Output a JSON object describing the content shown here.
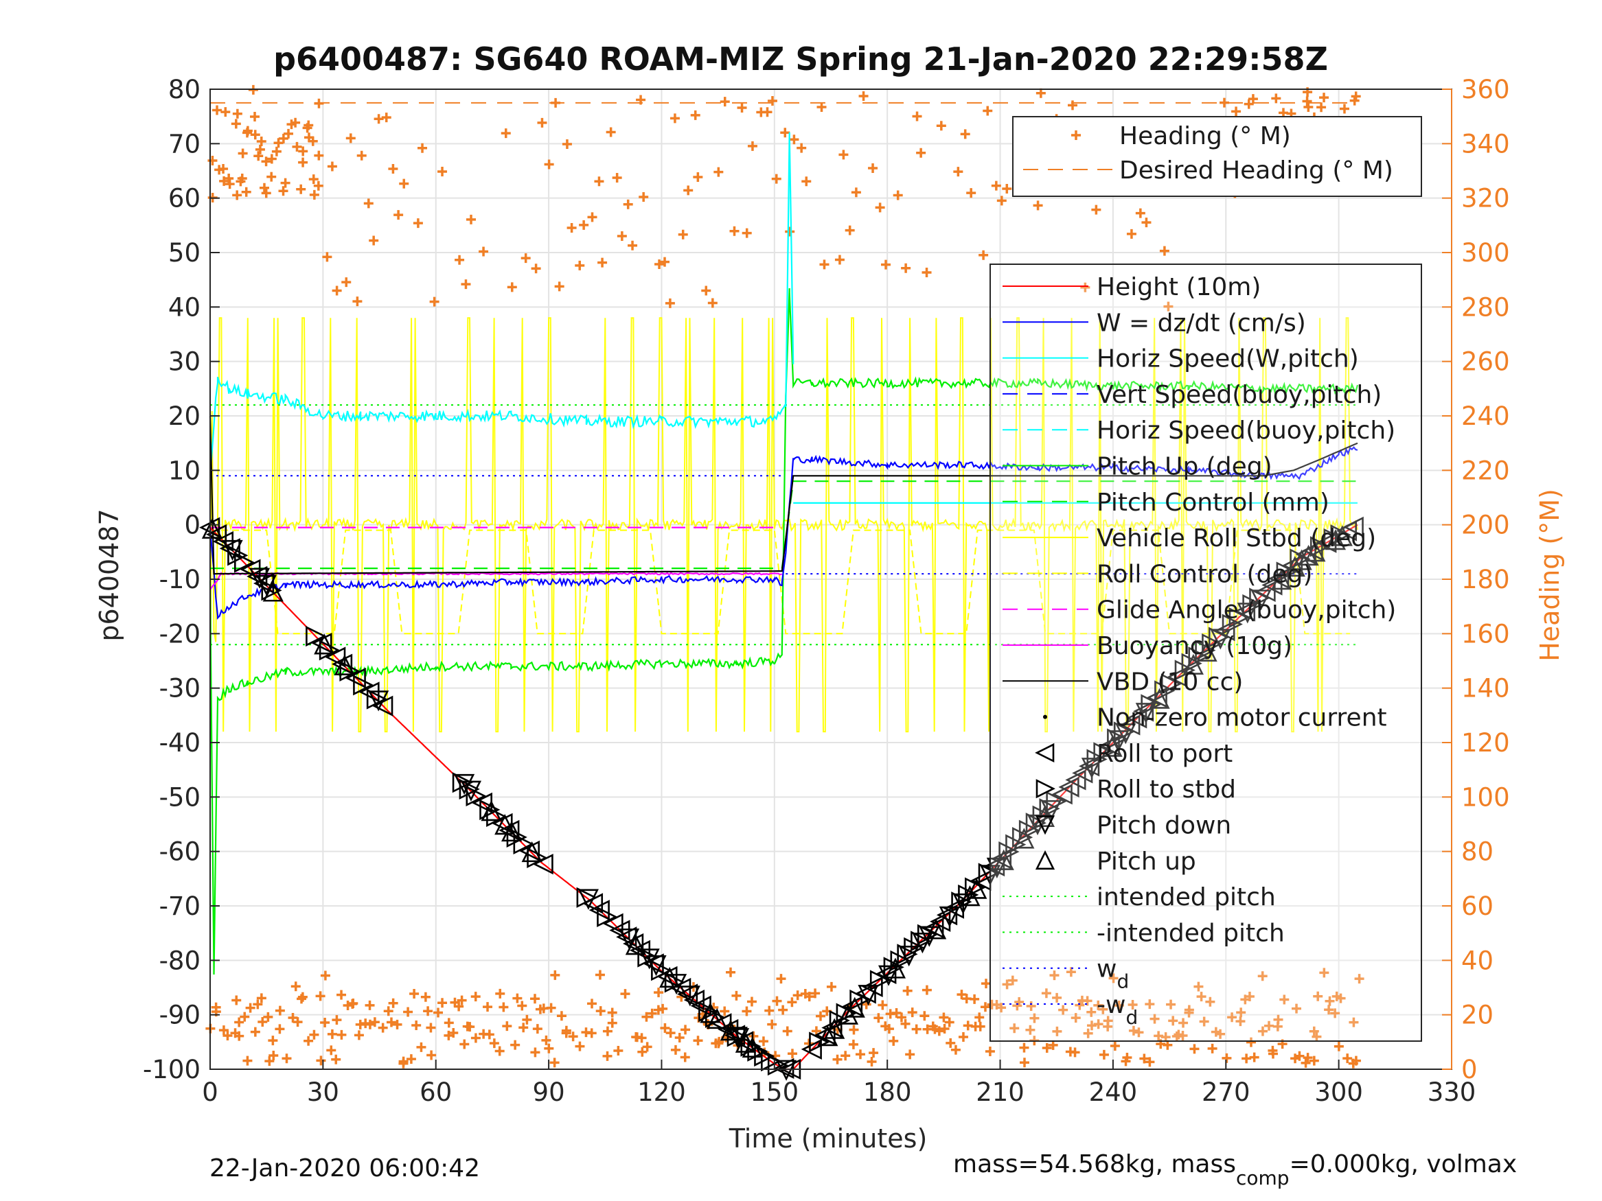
{
  "chart_data": {
    "type": "line",
    "title": "p6400487: SG640 ROAM-MIZ Spring 21-Jan-2020 22:29:58Z",
    "xlabel": "Time (minutes)",
    "ylabel": "p6400487",
    "ylabel_right": "Heading (°M)",
    "xlim": [
      0,
      330
    ],
    "ylim": [
      -100,
      80
    ],
    "ylim_right": [
      0,
      360
    ],
    "x_ticks": [
      "0",
      "30",
      "60",
      "90",
      "120",
      "150",
      "180",
      "210",
      "240",
      "270",
      "300",
      "330"
    ],
    "y_ticks": [
      "-100",
      "-90",
      "-80",
      "-70",
      "-60",
      "-50",
      "-40",
      "-30",
      "-20",
      "-10",
      "0",
      "10",
      "20",
      "30",
      "40",
      "50",
      "60",
      "70",
      "80"
    ],
    "y_right_ticks": [
      "0",
      "20",
      "40",
      "60",
      "80",
      "100",
      "120",
      "140",
      "160",
      "180",
      "200",
      "220",
      "240",
      "260",
      "280",
      "300",
      "320",
      "340",
      "360"
    ],
    "grid": true,
    "footer_left": "22-Jan-2020 06:00:42",
    "footer_right": "mass=54.568kg, mass",
    "footer_right_sub": "comp",
    "footer_right_tail": "=0.000kg, volmax",
    "colors": {
      "height": "#ff0000",
      "w": "#0000ff",
      "horiz_speed": "#00ffff",
      "pitch": "#00ee00",
      "roll": "#ffff00",
      "glide": "#ff00ff",
      "vbd": "#000000",
      "heading": "#f07f25"
    },
    "legend_heading": [
      {
        "label": "Heading (° M)",
        "style": "plus"
      },
      {
        "label": "Desired Heading (° M)",
        "style": "dash"
      }
    ],
    "legend_main": [
      {
        "label": "Height (10m)",
        "color": "#ff0000",
        "style": "solid"
      },
      {
        "label": "W = dz/dt (cm/s)",
        "color": "#0000ff",
        "style": "solid"
      },
      {
        "label": "Horiz Speed(W,pitch)",
        "color": "#00ffff",
        "style": "solid"
      },
      {
        "label": "Vert Speed(buoy,pitch)",
        "color": "#0000ff",
        "style": "dash"
      },
      {
        "label": "Horiz Speed(buoy,pitch)",
        "color": "#00ffff",
        "style": "dash"
      },
      {
        "label": "Pitch Up (deg)",
        "color": "#00ee00",
        "style": "solid"
      },
      {
        "label": "Pitch Control (mm)",
        "color": "#00ee00",
        "style": "dash"
      },
      {
        "label": "Vehicle Roll Stbd (deg)",
        "color": "#ffff00",
        "style": "solid"
      },
      {
        "label": "Roll Control (deg)",
        "color": "#ffff00",
        "style": "dash"
      },
      {
        "label": "Glide Angle (buoy,pitch)",
        "color": "#ff00ff",
        "style": "dash"
      },
      {
        "label": "Buoyancy (10g)",
        "color": "#ff00ff",
        "style": "solid"
      },
      {
        "label": "VBD (10 cc)",
        "color": "#000000",
        "style": "solid"
      },
      {
        "label": "Non-zero motor current",
        "color": "#000000",
        "style": "dot"
      },
      {
        "label": "Roll to port",
        "color": "#000000",
        "style": "tri-left"
      },
      {
        "label": "Roll to stbd",
        "color": "#000000",
        "style": "tri-right"
      },
      {
        "label": "Pitch down",
        "color": "#000000",
        "style": "tri-down"
      },
      {
        "label": "Pitch up",
        "color": "#000000",
        "style": "tri-up"
      },
      {
        "label": "intended pitch",
        "color": "#00ee00",
        "style": "dotted"
      },
      {
        "label": "-intended pitch",
        "color": "#00ee00",
        "style": "dotted"
      },
      {
        "label": "w",
        "sub": "d",
        "color": "#0000ff",
        "style": "dotted"
      },
      {
        "label": "-w",
        "sub": "d",
        "color": "#0000ff",
        "style": "dotted"
      }
    ],
    "reference_lines": {
      "intended_pitch": 22,
      "neg_intended_pitch": -22,
      "w_d": 9,
      "neg_w_d": -9,
      "desired_heading_deg": 355
    },
    "series": [
      {
        "key": "height",
        "x": [
          0,
          47,
          68,
          88,
          101,
          120,
          140,
          150,
          153,
          155,
          170,
          200,
          230,
          260,
          290,
          305
        ],
        "y": [
          -0.5,
          -34,
          -48,
          -62,
          -69,
          -82,
          -94,
          -99,
          -100,
          -100,
          -89,
          -69,
          -47,
          -26,
          -6,
          0
        ]
      },
      {
        "key": "w",
        "x": [
          0,
          2,
          5,
          10,
          20,
          40,
          60,
          80,
          100,
          120,
          140,
          150,
          152,
          153,
          155,
          160,
          180,
          200,
          220,
          240,
          260,
          280,
          290,
          300,
          305
        ],
        "y": [
          0,
          -17,
          -15,
          -13,
          -11,
          -11,
          -11,
          -10.5,
          -10.5,
          -10,
          -10,
          -10,
          -11,
          -5,
          12,
          12,
          11,
          11,
          10.5,
          10.5,
          10,
          9,
          9,
          13,
          14
        ]
      },
      {
        "key": "horiz_speed",
        "x": [
          0,
          2,
          5,
          10,
          20,
          30,
          40,
          60,
          80,
          100,
          120,
          140,
          150,
          153,
          154,
          155
        ],
        "y": [
          10,
          27,
          25,
          24,
          23,
          20,
          20,
          20,
          20,
          19,
          19,
          19,
          19,
          22,
          72,
          30
        ]
      },
      {
        "key": "pitch",
        "x": [
          0,
          1,
          2,
          5,
          10,
          20,
          40,
          60,
          80,
          100,
          120,
          140,
          150,
          152,
          153,
          154,
          155,
          160,
          180,
          200,
          220,
          240,
          260,
          280,
          300,
          305
        ],
        "y": [
          -10,
          -82,
          -32,
          -30,
          -29,
          -27,
          -27,
          -26,
          -26,
          -26,
          -25.5,
          -25.5,
          -25,
          -24,
          24,
          43,
          26,
          26,
          26,
          26,
          26,
          25.5,
          25.5,
          25,
          25,
          25
        ]
      },
      {
        "key": "vbd",
        "x": [
          0,
          1,
          152,
          155,
          156,
          280,
          288,
          295,
          305
        ],
        "y": [
          20,
          -9,
          -8.5,
          9,
          9,
          9,
          10,
          12,
          15
        ]
      },
      {
        "key": "glide",
        "x": [
          0,
          152
        ],
        "y": [
          -0.5,
          -0.5
        ]
      },
      {
        "key": "buoyancy",
        "x": [
          0,
          3,
          152
        ],
        "y": [
          -12,
          -9,
          -9
        ]
      }
    ]
  }
}
